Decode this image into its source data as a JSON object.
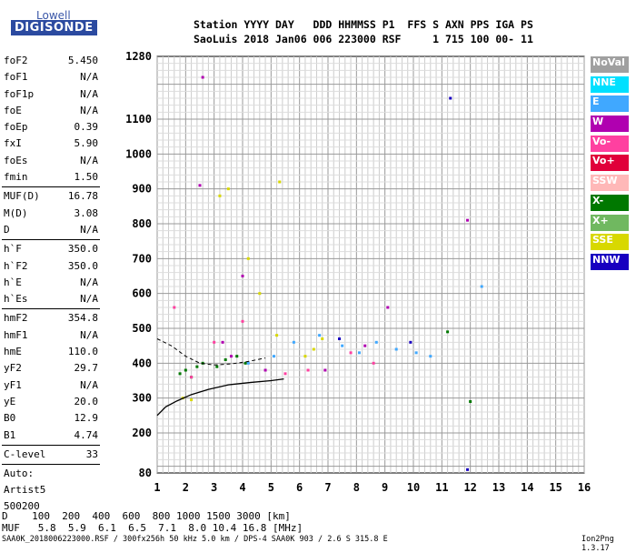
{
  "logo": {
    "top": "Lowell",
    "bottom": "DIGISONDE"
  },
  "header": {
    "line1": "Station YYYY DAY   DDD HHMMSS P1  FFS S AXN PPS IGA PS",
    "line2": "SaoLuis 2018 Jan06 006 223000 RSF     1 715 100 00- 11"
  },
  "params": {
    "group1": [
      {
        "label": "foF2",
        "value": "5.450"
      },
      {
        "label": "foF1",
        "value": "N/A"
      },
      {
        "label": "foF1p",
        "value": "N/A"
      },
      {
        "label": "foE",
        "value": "N/A"
      },
      {
        "label": "foEp",
        "value": "0.39"
      },
      {
        "label": "fxI",
        "value": "5.90"
      },
      {
        "label": "foEs",
        "value": "N/A"
      },
      {
        "label": "fmin",
        "value": "1.50"
      }
    ],
    "group2": [
      {
        "label": "MUF(D)",
        "value": "16.78"
      },
      {
        "label": "M(D)",
        "value": "3.08"
      },
      {
        "label": "D",
        "value": "N/A"
      }
    ],
    "group3": [
      {
        "label": "h`F",
        "value": "350.0"
      },
      {
        "label": "h`F2",
        "value": "350.0"
      },
      {
        "label": "h`E",
        "value": "N/A"
      },
      {
        "label": "h`Es",
        "value": "N/A"
      }
    ],
    "group4": [
      {
        "label": "hmF2",
        "value": "354.8"
      },
      {
        "label": "hmF1",
        "value": "N/A"
      },
      {
        "label": "hmE",
        "value": "110.0"
      },
      {
        "label": "yF2",
        "value": "29.7"
      },
      {
        "label": "yF1",
        "value": "N/A"
      },
      {
        "label": "yE",
        "value": "20.0"
      },
      {
        "label": "B0",
        "value": "12.9"
      },
      {
        "label": "B1",
        "value": "4.74"
      }
    ],
    "clevel": {
      "label": "C-level",
      "value": "33"
    },
    "auto_lines": [
      "Auto:",
      "Artist5",
      "500200"
    ]
  },
  "legend": [
    {
      "label": "NoVal",
      "color": "#a0a0a0"
    },
    {
      "label": "NNE",
      "color": "#00e0ff"
    },
    {
      "label": "E",
      "color": "#40a8ff"
    },
    {
      "label": "W",
      "color": "#b000b0"
    },
    {
      "label": "Vo-",
      "color": "#ff40a0"
    },
    {
      "label": "Vo+",
      "color": "#e0003a"
    },
    {
      "label": "SSW",
      "color": "#ffb8b8"
    },
    {
      "label": "X-",
      "color": "#007800"
    },
    {
      "label": "X+",
      "color": "#70b860"
    },
    {
      "label": "SSE",
      "color": "#d8d800"
    },
    {
      "label": "NNW",
      "color": "#1800c0"
    }
  ],
  "chart_data": {
    "type": "scatter",
    "xlim": [
      1,
      16
    ],
    "ylim": [
      80,
      1280
    ],
    "x_ticks": [
      1,
      2,
      3,
      4,
      5,
      6,
      7,
      8,
      9,
      10,
      11,
      12,
      13,
      14,
      15,
      16
    ],
    "y_ticks": [
      80,
      200,
      300,
      400,
      500,
      600,
      700,
      800,
      900,
      1000,
      1100,
      1280
    ],
    "grid": true,
    "xlabel": "",
    "ylabel": "",
    "series": [
      {
        "name": "SSE",
        "points": [
          [
            1.9,
            300
          ],
          [
            2.2,
            295
          ],
          [
            3.2,
            880
          ],
          [
            3.5,
            900
          ],
          [
            4.2,
            700
          ],
          [
            4.6,
            600
          ],
          [
            5.3,
            920
          ],
          [
            5.2,
            480
          ],
          [
            6.2,
            420
          ],
          [
            6.5,
            440
          ],
          [
            6.8,
            470
          ]
        ]
      },
      {
        "name": "W",
        "points": [
          [
            2.6,
            1220
          ],
          [
            2.5,
            910
          ],
          [
            3.3,
            460
          ],
          [
            3.6,
            420
          ],
          [
            4.0,
            650
          ],
          [
            4.8,
            380
          ],
          [
            6.9,
            380
          ],
          [
            8.3,
            450
          ],
          [
            9.1,
            560
          ],
          [
            11.9,
            810
          ]
        ]
      },
      {
        "name": "X-",
        "points": [
          [
            1.8,
            370
          ],
          [
            2.0,
            380
          ],
          [
            2.2,
            360
          ],
          [
            2.4,
            390
          ],
          [
            2.6,
            400
          ],
          [
            3.1,
            390
          ],
          [
            3.4,
            410
          ],
          [
            3.8,
            420
          ],
          [
            4.1,
            400
          ],
          [
            11.2,
            490
          ],
          [
            12.0,
            290
          ]
        ]
      },
      {
        "name": "E",
        "points": [
          [
            4.2,
            400
          ],
          [
            5.1,
            420
          ],
          [
            5.8,
            460
          ],
          [
            6.7,
            480
          ],
          [
            7.5,
            450
          ],
          [
            8.1,
            430
          ],
          [
            8.7,
            460
          ],
          [
            9.4,
            440
          ],
          [
            10.1,
            430
          ],
          [
            10.6,
            420
          ],
          [
            12.4,
            620
          ]
        ]
      },
      {
        "name": "NNW",
        "points": [
          [
            11.3,
            1160
          ],
          [
            11.9,
            90
          ],
          [
            7.4,
            470
          ],
          [
            9.9,
            460
          ]
        ]
      },
      {
        "name": "Vo-",
        "points": [
          [
            1.6,
            560
          ],
          [
            2.2,
            360
          ],
          [
            3.0,
            460
          ],
          [
            4.0,
            520
          ],
          [
            5.5,
            370
          ],
          [
            6.3,
            380
          ],
          [
            7.8,
            430
          ],
          [
            8.6,
            400
          ]
        ]
      }
    ],
    "profile_curve": {
      "x": [
        1.0,
        1.3,
        1.7,
        2.2,
        2.8,
        3.5,
        4.3,
        5.0,
        5.45
      ],
      "y": [
        250,
        275,
        292,
        310,
        325,
        338,
        345,
        350,
        354.8
      ]
    },
    "dashed_curve": {
      "x": [
        1.0,
        1.5,
        2.0,
        2.5,
        3.0,
        3.6,
        4.2,
        4.8
      ],
      "y": [
        470,
        450,
        420,
        400,
        395,
        398,
        405,
        415
      ]
    }
  },
  "footer": {
    "d_row": "D    100  200  400  600  800 1000 1500 3000 [km]",
    "muf_row": "MUF   5.8  5.9  6.1  6.5  7.1  8.0 10.4 16.8 [MHz]",
    "source": "SAA0K_2018006223000.RSF / 300fx256h 50 kHz 5.0 km / DPS-4 SAA0K 903 / 2.6 S 315.8 E",
    "version": "Ion2Png 1.3.17"
  }
}
